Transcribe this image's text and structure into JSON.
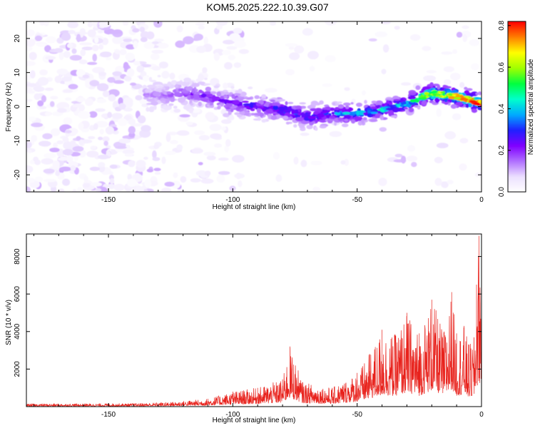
{
  "figure": {
    "title": "KOM5.2025.222.10.39.G07"
  },
  "chart_data": [
    {
      "type": "heatmap",
      "name": "spectrogram",
      "title": "KOM5.2025.222.10.39.G07",
      "xlabel": "Height of straight line (km)",
      "ylabel": "Frequency (Hz)",
      "xlim": [
        -183,
        0
      ],
      "ylim": [
        -25,
        25
      ],
      "xticks": [
        -150,
        -100,
        -50,
        0
      ],
      "yticks": [
        -20,
        -10,
        0,
        10,
        20
      ],
      "ridge": {
        "description": "dominant frequency ridge",
        "x": [
          -130,
          -120,
          -110,
          -100,
          -90,
          -80,
          -70,
          -60,
          -50,
          -40,
          -30,
          -20,
          -10,
          0
        ],
        "y": [
          3,
          4,
          3,
          1,
          0,
          -1,
          -3,
          -2,
          -2,
          -1,
          1,
          4,
          3,
          1
        ],
        "amplitude": [
          0.12,
          0.16,
          0.2,
          0.24,
          0.28,
          0.3,
          0.32,
          0.34,
          0.38,
          0.42,
          0.5,
          0.62,
          0.72,
          0.8
        ]
      },
      "colorbar": {
        "label": "Normalized spectral amplitude",
        "range": [
          0,
          0.82
        ],
        "ticks": [
          0.0,
          0.2,
          0.4,
          0.6,
          0.8
        ],
        "tick_labels": [
          "0.0",
          "0.2",
          "0.4",
          "0.6",
          "0.8"
        ],
        "colors": [
          "#ffffff",
          "#ece0ff",
          "#b070ff",
          "#8000ff",
          "#2020ff",
          "#00aaff",
          "#00ffcc",
          "#00ff40",
          "#a0ff00",
          "#ffff00",
          "#ff8000",
          "#ff0000"
        ]
      }
    },
    {
      "type": "line",
      "name": "snr",
      "xlabel": "Height of straight line (km)",
      "ylabel": "SNR (10 * v/v)",
      "xlim": [
        -183,
        0
      ],
      "ylim": [
        0,
        9200
      ],
      "xticks": [
        -150,
        -100,
        -50,
        0
      ],
      "yticks": [
        2000,
        4000,
        6000,
        8000
      ],
      "color": "#e8221c",
      "series": [
        {
          "name": "SNR envelope",
          "x": [
            -183,
            -140,
            -125,
            -110,
            -100,
            -90,
            -80,
            -77,
            -72,
            -60,
            -50,
            -45,
            -40,
            -35,
            -30,
            -25,
            -20,
            -15,
            -12,
            -10,
            -7,
            -5,
            -3,
            -2,
            -1,
            0
          ],
          "y": [
            150,
            170,
            240,
            420,
            800,
            1000,
            1450,
            3200,
            1300,
            1000,
            1800,
            2800,
            4100,
            3800,
            5000,
            3900,
            5700,
            4000,
            6100,
            3900,
            4300,
            3300,
            3700,
            6500,
            9100,
            6500
          ]
        }
      ]
    }
  ]
}
